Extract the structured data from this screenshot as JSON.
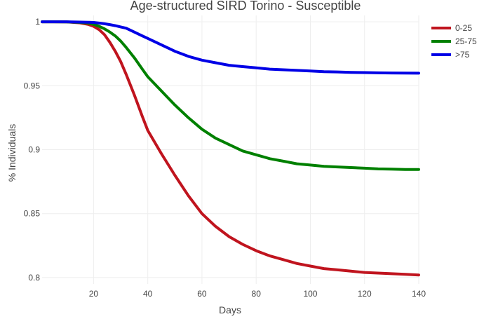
{
  "chart_data": {
    "type": "line",
    "title": "Age-structured SIRD Torino - Susceptible",
    "xlabel": "Days",
    "ylabel": "% Individuals",
    "xlim": [
      1,
      140
    ],
    "ylim": [
      0.795,
      1.005
    ],
    "x_ticks": [
      20,
      40,
      60,
      80,
      100,
      120,
      140
    ],
    "y_ticks": [
      0.8,
      0.85,
      0.9,
      0.95,
      1
    ],
    "y_tick_labels": [
      "0.8",
      "0.85",
      "0.9",
      "0.95",
      "1"
    ],
    "grid": true,
    "legend_position": "top-right",
    "x": [
      1,
      5,
      10,
      15,
      18,
      20,
      22,
      24,
      26,
      28,
      30,
      32,
      35,
      38,
      40,
      45,
      50,
      55,
      60,
      65,
      70,
      75,
      80,
      85,
      90,
      95,
      100,
      105,
      110,
      115,
      120,
      125,
      130,
      135,
      140
    ],
    "series": [
      {
        "name": "0-25",
        "color": "#c0141e",
        "values": [
          1.0,
          1.0,
          0.9999,
          0.9992,
          0.998,
          0.9965,
          0.994,
          0.99,
          0.984,
          0.977,
          0.969,
          0.959,
          0.943,
          0.926,
          0.915,
          0.897,
          0.88,
          0.864,
          0.85,
          0.84,
          0.832,
          0.826,
          0.821,
          0.817,
          0.814,
          0.811,
          0.809,
          0.807,
          0.806,
          0.805,
          0.804,
          0.8035,
          0.803,
          0.8025,
          0.802
        ]
      },
      {
        "name": "25-75",
        "color": "#008000",
        "values": [
          1.0,
          1.0,
          0.9999,
          0.9995,
          0.999,
          0.998,
          0.9965,
          0.9945,
          0.992,
          0.989,
          0.985,
          0.98,
          0.972,
          0.963,
          0.957,
          0.946,
          0.935,
          0.925,
          0.916,
          0.909,
          0.904,
          0.899,
          0.896,
          0.893,
          0.891,
          0.889,
          0.888,
          0.887,
          0.8865,
          0.886,
          0.8855,
          0.885,
          0.8848,
          0.8845,
          0.8845
        ]
      },
      {
        "name": ">75",
        "color": "#0000e6",
        "values": [
          1.0,
          1.0,
          1.0,
          0.9998,
          0.9997,
          0.9995,
          0.999,
          0.9985,
          0.9978,
          0.997,
          0.996,
          0.995,
          0.992,
          0.989,
          0.987,
          0.982,
          0.977,
          0.973,
          0.97,
          0.968,
          0.966,
          0.965,
          0.964,
          0.963,
          0.9625,
          0.962,
          0.9615,
          0.961,
          0.9608,
          0.9605,
          0.9603,
          0.9601,
          0.96,
          0.9599,
          0.9598
        ]
      }
    ]
  }
}
